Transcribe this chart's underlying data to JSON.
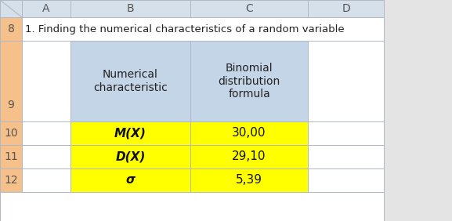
{
  "title": "1. Finding the numerical characteristics of a random variable",
  "col_labels": [
    "A",
    "B",
    "C",
    "D"
  ],
  "row_numbers": [
    "8",
    "9",
    "10",
    "11",
    "12"
  ],
  "header_b": "Numerical\ncharacteristic",
  "header_c": "Binomial\ndistribution\nformula",
  "data_rows": [
    [
      "M(X)",
      "30,00"
    ],
    [
      "D(X)",
      "29,10"
    ],
    [
      "σ",
      "5,39"
    ]
  ],
  "outer_bg": "#e4e4e4",
  "col_header_bg": "#d6e0ea",
  "row_header_bg": "#f5c08a",
  "white_cell": "#ffffff",
  "blue_cell": "#c5d5e8",
  "yellow_cell": "#ffff00",
  "border_color": "#b0b8c4",
  "text_dark": "#222222",
  "text_gray": "#555555"
}
